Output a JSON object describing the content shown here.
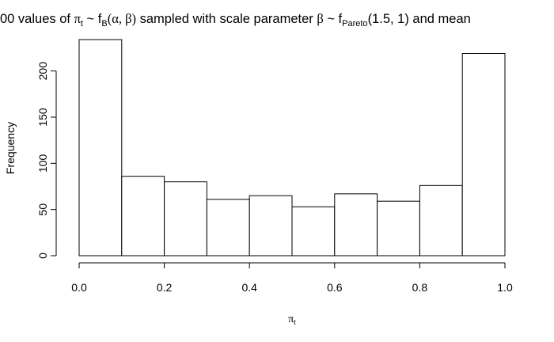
{
  "chart_data": {
    "type": "bar",
    "title": {
      "prefix": "00 values of ",
      "pi": "π",
      "t": "t",
      "tilde1": " ~ f",
      "B": "B",
      "paren_ab": "(α, β)",
      "middle": " sampled with scale parameter ",
      "beta": "β",
      "tilde2": " ~ f",
      "Pareto": "Pareto",
      "paren_args": "(1.5, 1)",
      "suffix": " and mean"
    },
    "xlabel": {
      "pi": "π",
      "t": "t"
    },
    "ylabel": "Frequency",
    "bin_edges": [
      0.0,
      0.1,
      0.2,
      0.3,
      0.4,
      0.5,
      0.6,
      0.7,
      0.8,
      0.9,
      1.0
    ],
    "values": [
      234,
      86,
      80,
      61,
      65,
      53,
      67,
      59,
      76,
      219
    ],
    "xlim": [
      0.0,
      1.0
    ],
    "ylim": [
      0,
      234
    ],
    "x_ticks": [
      "0.0",
      "0.2",
      "0.4",
      "0.6",
      "0.8",
      "1.0"
    ],
    "y_ticks": [
      "0",
      "50",
      "100",
      "150",
      "200"
    ],
    "grid": false
  }
}
